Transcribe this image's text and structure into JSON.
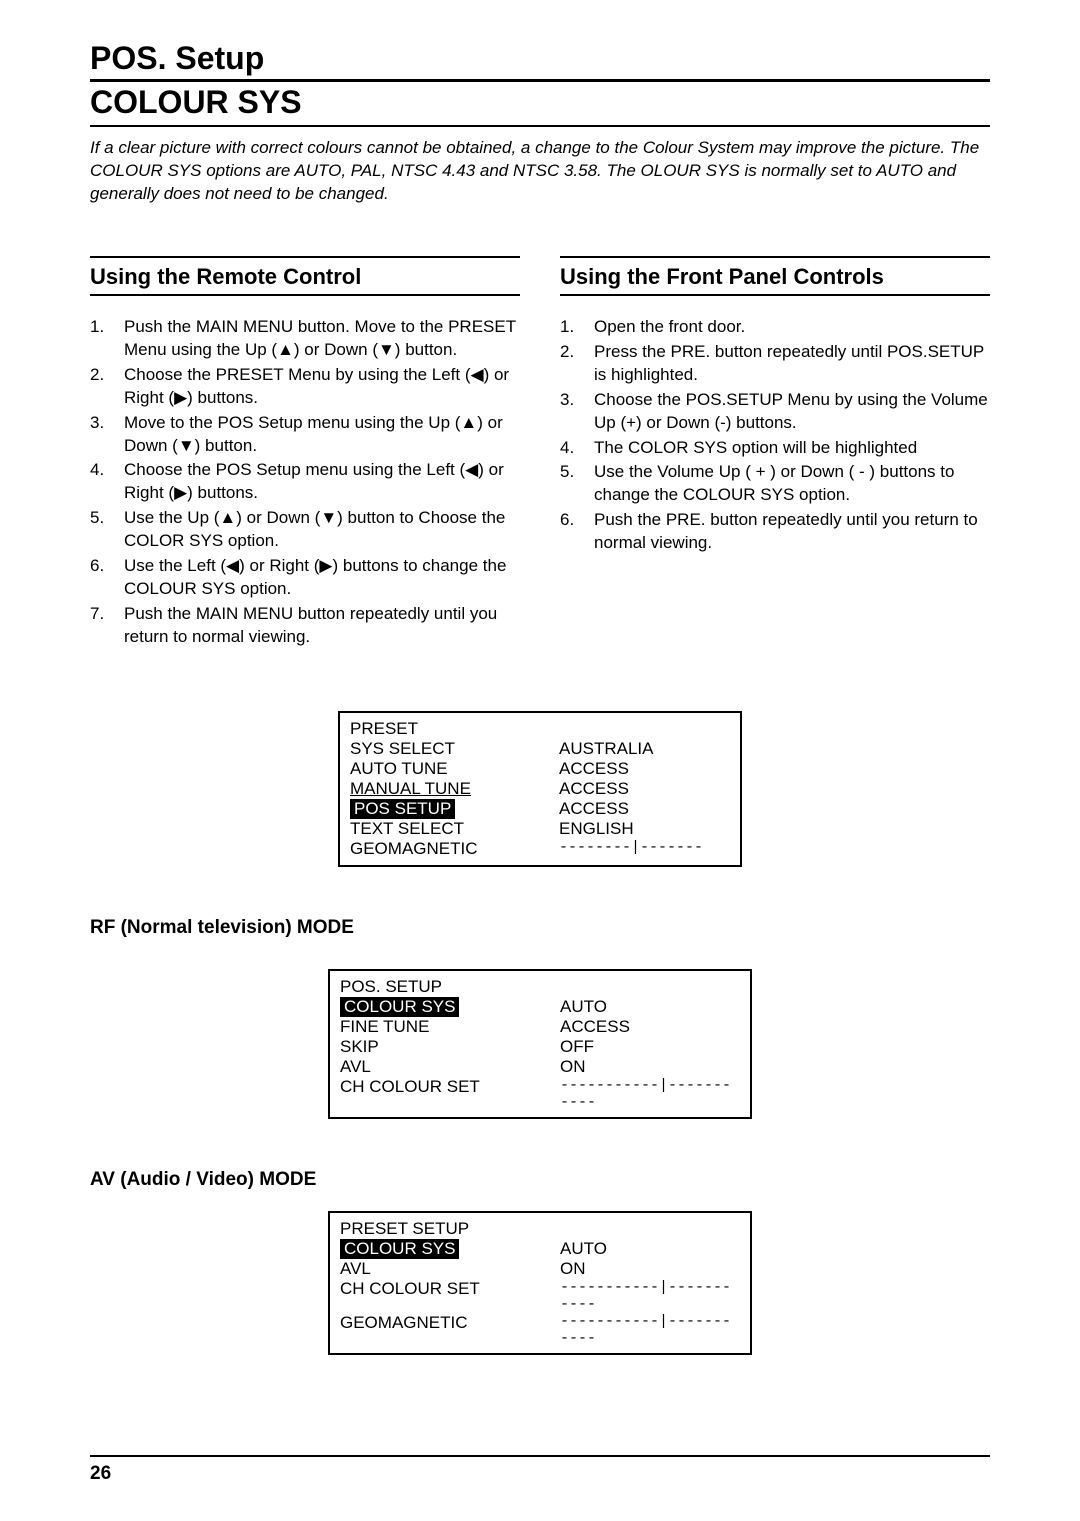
{
  "title1": "POS. Setup",
  "title2": "COLOUR SYS",
  "intro": "If a clear picture with correct colours cannot be obtained, a change to the Colour System may improve the picture. The COLOUR SYS options are AUTO, PAL, NTSC 4.43 and NTSC 3.58. The OLOUR SYS is normally set to AUTO and generally does not need to be changed.",
  "remote": {
    "heading": "Using the Remote Control",
    "steps": [
      "Push the MAIN MENU button. Move to the PRESET Menu using the Up (▲) or Down (▼) button.",
      "Choose the PRESET Menu by using the Left (◀) or Right (▶) buttons.",
      "Move to the POS Setup menu using the Up (▲) or Down (▼) button.",
      "Choose the POS Setup menu using the Left (◀) or Right (▶) buttons.",
      "Use the Up (▲) or Down (▼) button to Choose the COLOR SYS option.",
      "Use the Left (◀) or Right (▶) buttons to change the COLOUR SYS option.",
      "Push the MAIN MENU button repeatedly until you return to normal viewing."
    ]
  },
  "front": {
    "heading": "Using the Front Panel Controls",
    "steps": [
      "Open the front door.",
      "Press the PRE. button repeatedly until POS.SETUP is highlighted.",
      "Choose the POS.SETUP Menu by using the Volume Up (+) or Down (-) buttons.",
      "The COLOR SYS option will be highlighted",
      "Use the Volume Up ( + ) or Down ( - ) buttons to change the COLOUR SYS option.",
      "Push the PRE. button repeatedly until you return to normal viewing."
    ]
  },
  "menu1": {
    "rows": [
      {
        "label": "PRESET",
        "value": "",
        "highlight": false
      },
      {
        "label": "SYS SELECT",
        "value": "AUSTRALIA",
        "highlight": false
      },
      {
        "label": "AUTO TUNE",
        "value": "ACCESS",
        "highlight": false
      },
      {
        "label": "MANUAL TUNE",
        "value": "ACCESS",
        "highlight": false,
        "underline": true
      },
      {
        "label": "POS SETUP",
        "value": "ACCESS",
        "highlight": true
      },
      {
        "label": "TEXT SELECT",
        "value": "ENGLISH",
        "highlight": false
      },
      {
        "label": "GEOMAGNETIC",
        "value": "--------|-------",
        "highlight": false,
        "slider": true
      }
    ]
  },
  "rf_head": "RF (Normal television) MODE",
  "menu2": {
    "rows": [
      {
        "label": "POS. SETUP",
        "value": "",
        "highlight": false
      },
      {
        "label": "COLOUR SYS",
        "value": "AUTO",
        "highlight": true
      },
      {
        "label": "FINE TUNE",
        "value": "ACCESS",
        "highlight": false
      },
      {
        "label": "SKIP",
        "value": "OFF",
        "highlight": false
      },
      {
        "label": "AVL",
        "value": "ON",
        "highlight": false
      },
      {
        "label": "CH COLOUR SET",
        "value": "-----------|-----------",
        "highlight": false,
        "slider": true
      }
    ]
  },
  "av_head": "AV (Audio / Video) MODE",
  "menu3": {
    "rows": [
      {
        "label": "PRESET SETUP",
        "value": "",
        "highlight": false
      },
      {
        "label": "COLOUR SYS",
        "value": "AUTO",
        "highlight": true
      },
      {
        "label": "AVL",
        "value": "ON",
        "highlight": false
      },
      {
        "label": "CH COLOUR SET",
        "value": "-----------|-----------",
        "highlight": false,
        "slider": true
      },
      {
        "label": "GEOMAGNETIC",
        "value": "-----------|-----------",
        "highlight": false,
        "slider": true
      }
    ]
  },
  "page_number": "26"
}
